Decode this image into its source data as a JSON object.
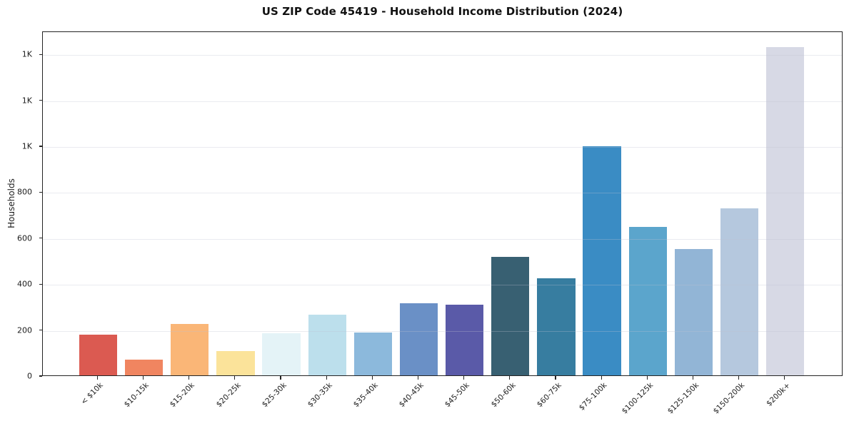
{
  "figure": {
    "kind": "static-matplotlib-style-chart"
  },
  "chart_data": {
    "type": "bar",
    "title": "US ZIP Code 45419 - Household Income Distribution (2024)",
    "xlabel": "",
    "ylabel": "Households",
    "categories": [
      "< $10k",
      "$10-15k",
      "$15-20k",
      "$20-25k",
      "$25-30k",
      "$30-35k",
      "$35-40k",
      "$40-45k",
      "$45-50k",
      "$50-60k",
      "$60-75k",
      "$75-100k",
      "$100-125k",
      "$125-150k",
      "$150-200k",
      "$200k+"
    ],
    "values": [
      176,
      67,
      224,
      105,
      183,
      263,
      186,
      313,
      309,
      517,
      421,
      996,
      645,
      550,
      727,
      1430
    ],
    "bar_colors": [
      "#db5a51",
      "#f08560",
      "#fab677",
      "#fbe39a",
      "#e4f3f7",
      "#bcdfec",
      "#8cb9dc",
      "#6a90c6",
      "#5a5aa8",
      "#386072",
      "#377da0",
      "#3a8cc4",
      "#5ba5cc",
      "#92b5d6",
      "#b5c8de",
      "#d7d9e5"
    ],
    "ylim": [
      0,
      1500
    ],
    "yticks": [
      0,
      200,
      400,
      600,
      800,
      1000,
      1200,
      1400
    ],
    "ytick_labels": [
      "0",
      "200",
      "400",
      "600",
      "800",
      "1K",
      "1K",
      "1K"
    ],
    "grid": "horizontal-light",
    "legend": "none",
    "bar_width_fraction": 0.83,
    "xtick_rotation_deg": 45
  },
  "colors": {
    "background": "#ffffff",
    "axis": "#242424",
    "tick_text": "#1c1c1c",
    "title_text": "#111111",
    "grid": "#e9ebef"
  }
}
